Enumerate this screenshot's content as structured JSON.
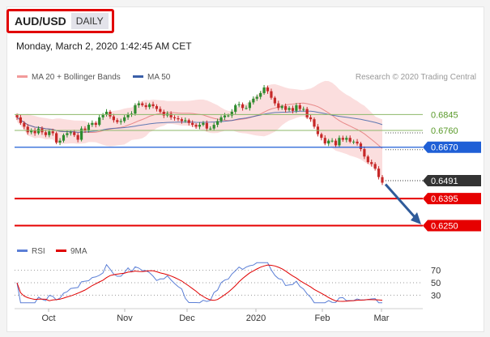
{
  "header": {
    "pair": "AUD/USD",
    "period": "DAILY",
    "date": "Monday, March 2, 2020 1:42:45 AM CET"
  },
  "legend": {
    "bollinger": "MA 20 + Bollinger Bands",
    "ma50": "MA 50",
    "credit": "Research © 2020 Trading Central"
  },
  "rsi_legend": {
    "rsi": "RSI",
    "ma9": "9MA"
  },
  "colors": {
    "up": "#2e8b2e",
    "down": "#c62828",
    "band": "#f8c8c8",
    "ma20": "#e88a8a",
    "ma50": "#3a5fa8",
    "resistance": "#8db86a",
    "pivot": "#1f5fd6",
    "support": "#e60000",
    "last": "#333333",
    "rsi": "#5b7fd6",
    "rsi_ma": "#e00000",
    "arrow": "#2f5b9a"
  },
  "chart_data": {
    "type": "candlestick",
    "x_ticks": [
      "Oct",
      "Nov",
      "Dec",
      "2020",
      "Feb",
      "Mar"
    ],
    "y_range": [
      0.62,
      0.699
    ],
    "levels": [
      {
        "label": "0.6845",
        "value": 0.6845,
        "kind": "resistance"
      },
      {
        "label": "0.6760",
        "value": 0.676,
        "kind": "resistance"
      },
      {
        "label": "0.6670",
        "value": 0.667,
        "kind": "pivot"
      },
      {
        "label": "0.6491",
        "value": 0.6491,
        "kind": "last"
      },
      {
        "label": "0.6395",
        "value": 0.6395,
        "kind": "support"
      },
      {
        "label": "0.6250",
        "value": 0.625,
        "kind": "support"
      }
    ],
    "rsi_levels": [
      70,
      50,
      30
    ],
    "close": [
      0.683,
      0.68,
      0.678,
      0.675,
      0.676,
      0.6745,
      0.677,
      0.675,
      0.6735,
      0.6755,
      0.6745,
      0.6695,
      0.6705,
      0.6735,
      0.6745,
      0.675,
      0.6735,
      0.671,
      0.677,
      0.676,
      0.679,
      0.68,
      0.679,
      0.683,
      0.6845,
      0.686,
      0.6835,
      0.6815,
      0.6805,
      0.681,
      0.683,
      0.6845,
      0.685,
      0.6895,
      0.6905,
      0.6895,
      0.6885,
      0.69,
      0.689,
      0.6875,
      0.686,
      0.684,
      0.685,
      0.683,
      0.6825,
      0.682,
      0.681,
      0.6815,
      0.68,
      0.679,
      0.678,
      0.679,
      0.68,
      0.677,
      0.677,
      0.679,
      0.681,
      0.683,
      0.684,
      0.684,
      0.686,
      0.6895,
      0.69,
      0.688,
      0.688,
      0.691,
      0.693,
      0.694,
      0.696,
      0.699,
      0.697,
      0.6935,
      0.6905,
      0.688,
      0.689,
      0.687,
      0.688,
      0.6865,
      0.6895,
      0.6875,
      0.6875,
      0.683,
      0.682,
      0.678,
      0.674,
      0.672,
      0.669,
      0.6705,
      0.6705,
      0.668,
      0.672,
      0.671,
      0.672,
      0.67,
      0.67,
      0.669,
      0.666,
      0.662,
      0.659,
      0.658,
      0.6555,
      0.651,
      0.648
    ]
  }
}
